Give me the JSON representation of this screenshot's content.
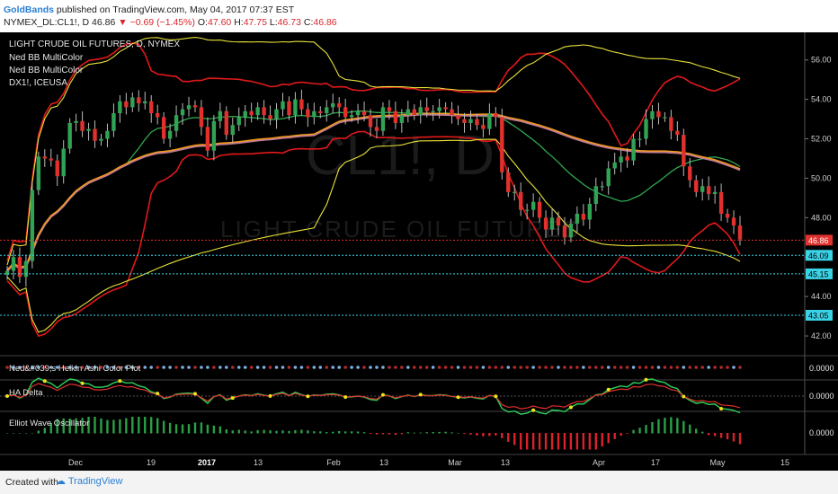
{
  "header": {
    "author": "GoldBands",
    "published": " published on TradingView.com, May 04, 2017 07:37 EST",
    "symbol": "NYMEX_DL:CL1!, D",
    "last": "46.86",
    "change": "−0.69 (−1.45%)",
    "o_label": "O:",
    "o_value": "47.60",
    "h_label": "H:",
    "h_value": "47.75",
    "l_label": "L:",
    "l_value": "46.73",
    "c_label": "C:",
    "c_value": "46.86"
  },
  "legend": {
    "title": "LIGHT CRUDE OIL FUTURES, D, NYMEX",
    "ind1": "Ned BB MultiColor",
    "ind2": "Ned BB MultiColor",
    "ind3": "DX1!, ICEUSA"
  },
  "watermark": {
    "big": "CL1!, D",
    "small": "LIGHT CRUDE OIL FUTURES"
  },
  "price_axis": {
    "ticks": [
      "56.00",
      "54.00",
      "52.00",
      "50.00",
      "48.00",
      "46.00",
      "44.00",
      "42.00"
    ],
    "current": "46.86",
    "level1": "46.09",
    "level2": "45.15",
    "level3": "43.05"
  },
  "panes": {
    "heikin": {
      "label": "Ned&#039;s Heikin Ashi Color Plot",
      "value": "0.0000"
    },
    "hadelta": {
      "label": "HA Delta",
      "value": "0.0000"
    },
    "ewo": {
      "label": "Elliot Wave Oscillator",
      "value": "0.0000"
    }
  },
  "time_axis": [
    "Dec",
    "19",
    "2017",
    "13",
    "Feb",
    "13",
    "Mar",
    "13",
    "Apr",
    "17",
    "May",
    "15"
  ],
  "footer": {
    "created": "Created with",
    "brand": "TradingView"
  },
  "colors": {
    "up": "#31a354",
    "down": "#e0312d",
    "bb_red": "#e0191b",
    "bb_yellow": "#e8e23a",
    "ma_pink": "#c07a95",
    "ma_orange": "#f29b16",
    "level_cyan": "#3ad3e6"
  },
  "chart_data": {
    "type": "candlestick",
    "title": "LIGHT CRUDE OIL FUTURES, D, NYMEX",
    "ylim": [
      41,
      57.4
    ],
    "x_tick_labels": [
      "Dec",
      "19",
      "2017",
      "13",
      "Feb",
      "13",
      "Mar",
      "13",
      "Apr",
      "17",
      "May",
      "15"
    ],
    "ohlc_close_sequence": [
      45.3,
      46.0,
      45.0,
      45.8,
      49.4,
      51.1,
      51.0,
      50.9,
      50.1,
      51.5,
      52.8,
      52.9,
      52.4,
      52.5,
      51.9,
      52.0,
      52.4,
      53.3,
      53.9,
      53.6,
      54.1,
      53.8,
      53.9,
      53.3,
      53.1,
      52.0,
      52.4,
      53.2,
      53.5,
      53.7,
      53.6,
      52.6,
      51.4,
      52.9,
      53.4,
      52.2,
      52.7,
      53.1,
      53.4,
      53.2,
      53.6,
      53.2,
      53.0,
      53.5,
      53.9,
      53.2,
      54.0,
      53.5,
      53.1,
      53.4,
      53.3,
      53.6,
      53.8,
      53.6,
      53.1,
      53.2,
      53.4,
      53.2,
      52.6,
      52.4,
      53.6,
      53.4,
      52.8,
      53.2,
      53.5,
      53.2,
      53.6,
      53.4,
      53.4,
      53.6,
      53.5,
      53.2,
      53.0,
      52.8,
      53.0,
      52.7,
      52.5,
      53.3,
      53.1,
      50.3,
      49.3,
      49.3,
      48.4,
      48.4,
      48.8,
      48.0,
      47.4,
      48.0,
      47.6,
      47.0,
      47.7,
      48.2,
      47.9,
      48.7,
      49.6,
      49.6,
      50.5,
      50.8,
      51.1,
      50.9,
      52.0,
      52.0,
      53.0,
      53.4,
      53.1,
      53.1,
      52.4,
      52.2,
      50.6,
      49.9,
      49.3,
      49.6,
      49.2,
      49.3,
      48.2,
      48.0,
      47.6,
      46.9
    ]
  }
}
